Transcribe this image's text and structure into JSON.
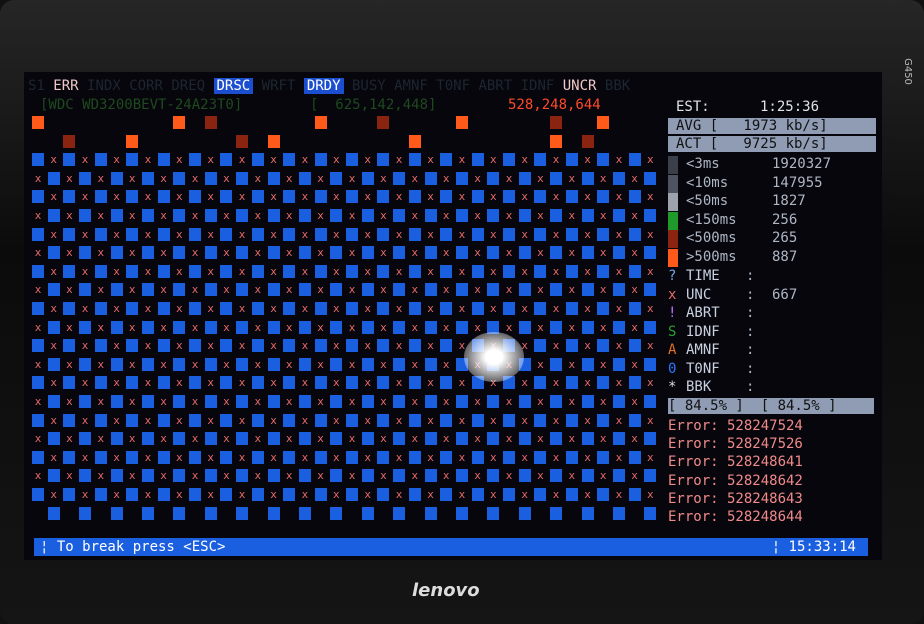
{
  "status_flags": [
    {
      "label": "S1",
      "active": false
    },
    {
      "label": "ERR",
      "active": "err"
    },
    {
      "label": "INDX",
      "active": false
    },
    {
      "label": "CORR",
      "active": false
    },
    {
      "label": "DREQ",
      "active": false
    },
    {
      "label": "DRSC",
      "active": true
    },
    {
      "label": "WRFT",
      "active": false
    },
    {
      "label": "DRDY",
      "active": true
    },
    {
      "label": "BUSY",
      "active": false
    },
    {
      "label": "AMNF",
      "active": false
    },
    {
      "label": "T0NF",
      "active": false
    },
    {
      "label": "ABRT",
      "active": false
    },
    {
      "label": "IDNF",
      "active": false
    },
    {
      "label": "UNCR",
      "active": "err"
    },
    {
      "label": "BBK",
      "active": false
    }
  ],
  "drive": {
    "model": "[WDC WD3200BEVT-24A23T0]",
    "lba_total": "[  625,142,448]",
    "lba_current": "528,248,644",
    "est_label": "EST:",
    "est_time": "1:25:36"
  },
  "speed": {
    "avg": "AVG [   1973 kb/s]",
    "act": "ACT [   9725 kb/s]"
  },
  "latency": [
    {
      "label": "<3ms",
      "value": "1920327",
      "color": "#3a3f4a"
    },
    {
      "label": "<10ms",
      "value": "147955",
      "color": "#4d5360"
    },
    {
      "label": "<50ms",
      "value": "1827",
      "color": "#9ca3ad"
    },
    {
      "label": "<150ms",
      "value": "256",
      "color": "#1f9a2a"
    },
    {
      "label": "<500ms",
      "value": "265",
      "color": "#8a2410"
    },
    {
      "label": ">500ms",
      "value": "887",
      "color": "#ff5a1a"
    }
  ],
  "errors": [
    {
      "sym": "?",
      "label": "TIME",
      "value": "",
      "color": "#7aa0e0"
    },
    {
      "sym": "x",
      "label": "UNC",
      "value": "667",
      "color": "#e86a6a"
    },
    {
      "sym": "!",
      "label": "ABRT",
      "value": "",
      "color": "#c070ff"
    },
    {
      "sym": "S",
      "label": "IDNF",
      "value": "",
      "color": "#2aa030"
    },
    {
      "sym": "A",
      "label": "AMNF",
      "value": "",
      "color": "#e07020"
    },
    {
      "sym": "0",
      "label": "T0NF",
      "value": "",
      "color": "#2a7aff"
    },
    {
      "sym": "*",
      "label": "BBK",
      "value": "",
      "color": "#dddddd"
    }
  ],
  "progress": {
    "left": "[ 84.5% ]",
    "right": "[ 84.5% ]",
    "value_percent": 84.5
  },
  "error_log": [
    "Error: 528247524",
    "Error: 528247526",
    "Error: 528248641",
    "Error: 528248642",
    "Error: 528248643",
    "Error: 528248644"
  ],
  "footer": {
    "hint": "¦ To break press <ESC>",
    "clock": "¦ 15:33:14"
  },
  "bezel": {
    "brand": "lenovo",
    "model": "G450"
  },
  "colors": {
    "block": "#1a5fe0",
    "unc": "#e86a6a",
    "bar": "#1a5fe0"
  }
}
